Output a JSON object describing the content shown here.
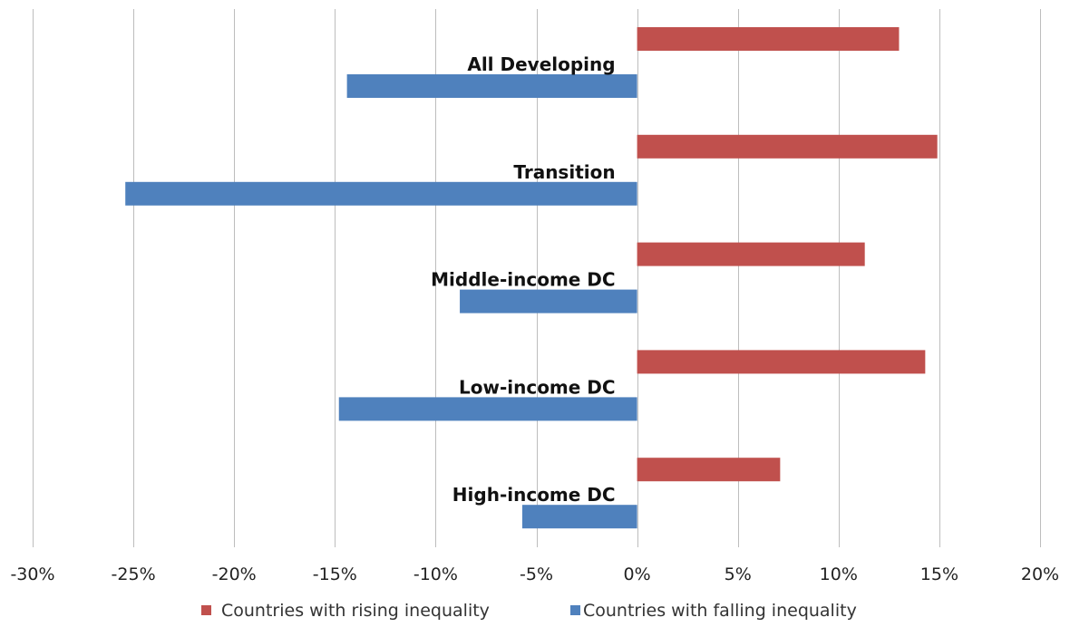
{
  "chart_data": {
    "type": "bar",
    "orientation": "horizontal",
    "title": "",
    "xlabel": "",
    "ylabel": "",
    "categories": [
      "All Developing",
      "Transition",
      "Middle-income DC",
      "Low-income DC",
      "High-income DC"
    ],
    "series": [
      {
        "name": "Countries with rising  inequality",
        "color": "#c0504d",
        "values": [
          13,
          14.9,
          11.3,
          14.3,
          7.1
        ]
      },
      {
        "name": "Countries with falling inequality",
        "color": "#4f81bd",
        "values": [
          -14.4,
          -25.4,
          -8.8,
          -14.8,
          -5.7
        ]
      }
    ],
    "xlim": [
      -30,
      20
    ],
    "xticks": [
      -30,
      -25,
      -20,
      -15,
      -10,
      -5,
      0,
      5,
      10,
      15,
      20
    ],
    "xtick_labels": [
      "-30%",
      "-25%",
      "-20%",
      "-15%",
      "-10%",
      "-5%",
      "0%",
      "5%",
      "10%",
      "15%",
      "20%"
    ],
    "grid": true,
    "legend_position": "bottom"
  }
}
